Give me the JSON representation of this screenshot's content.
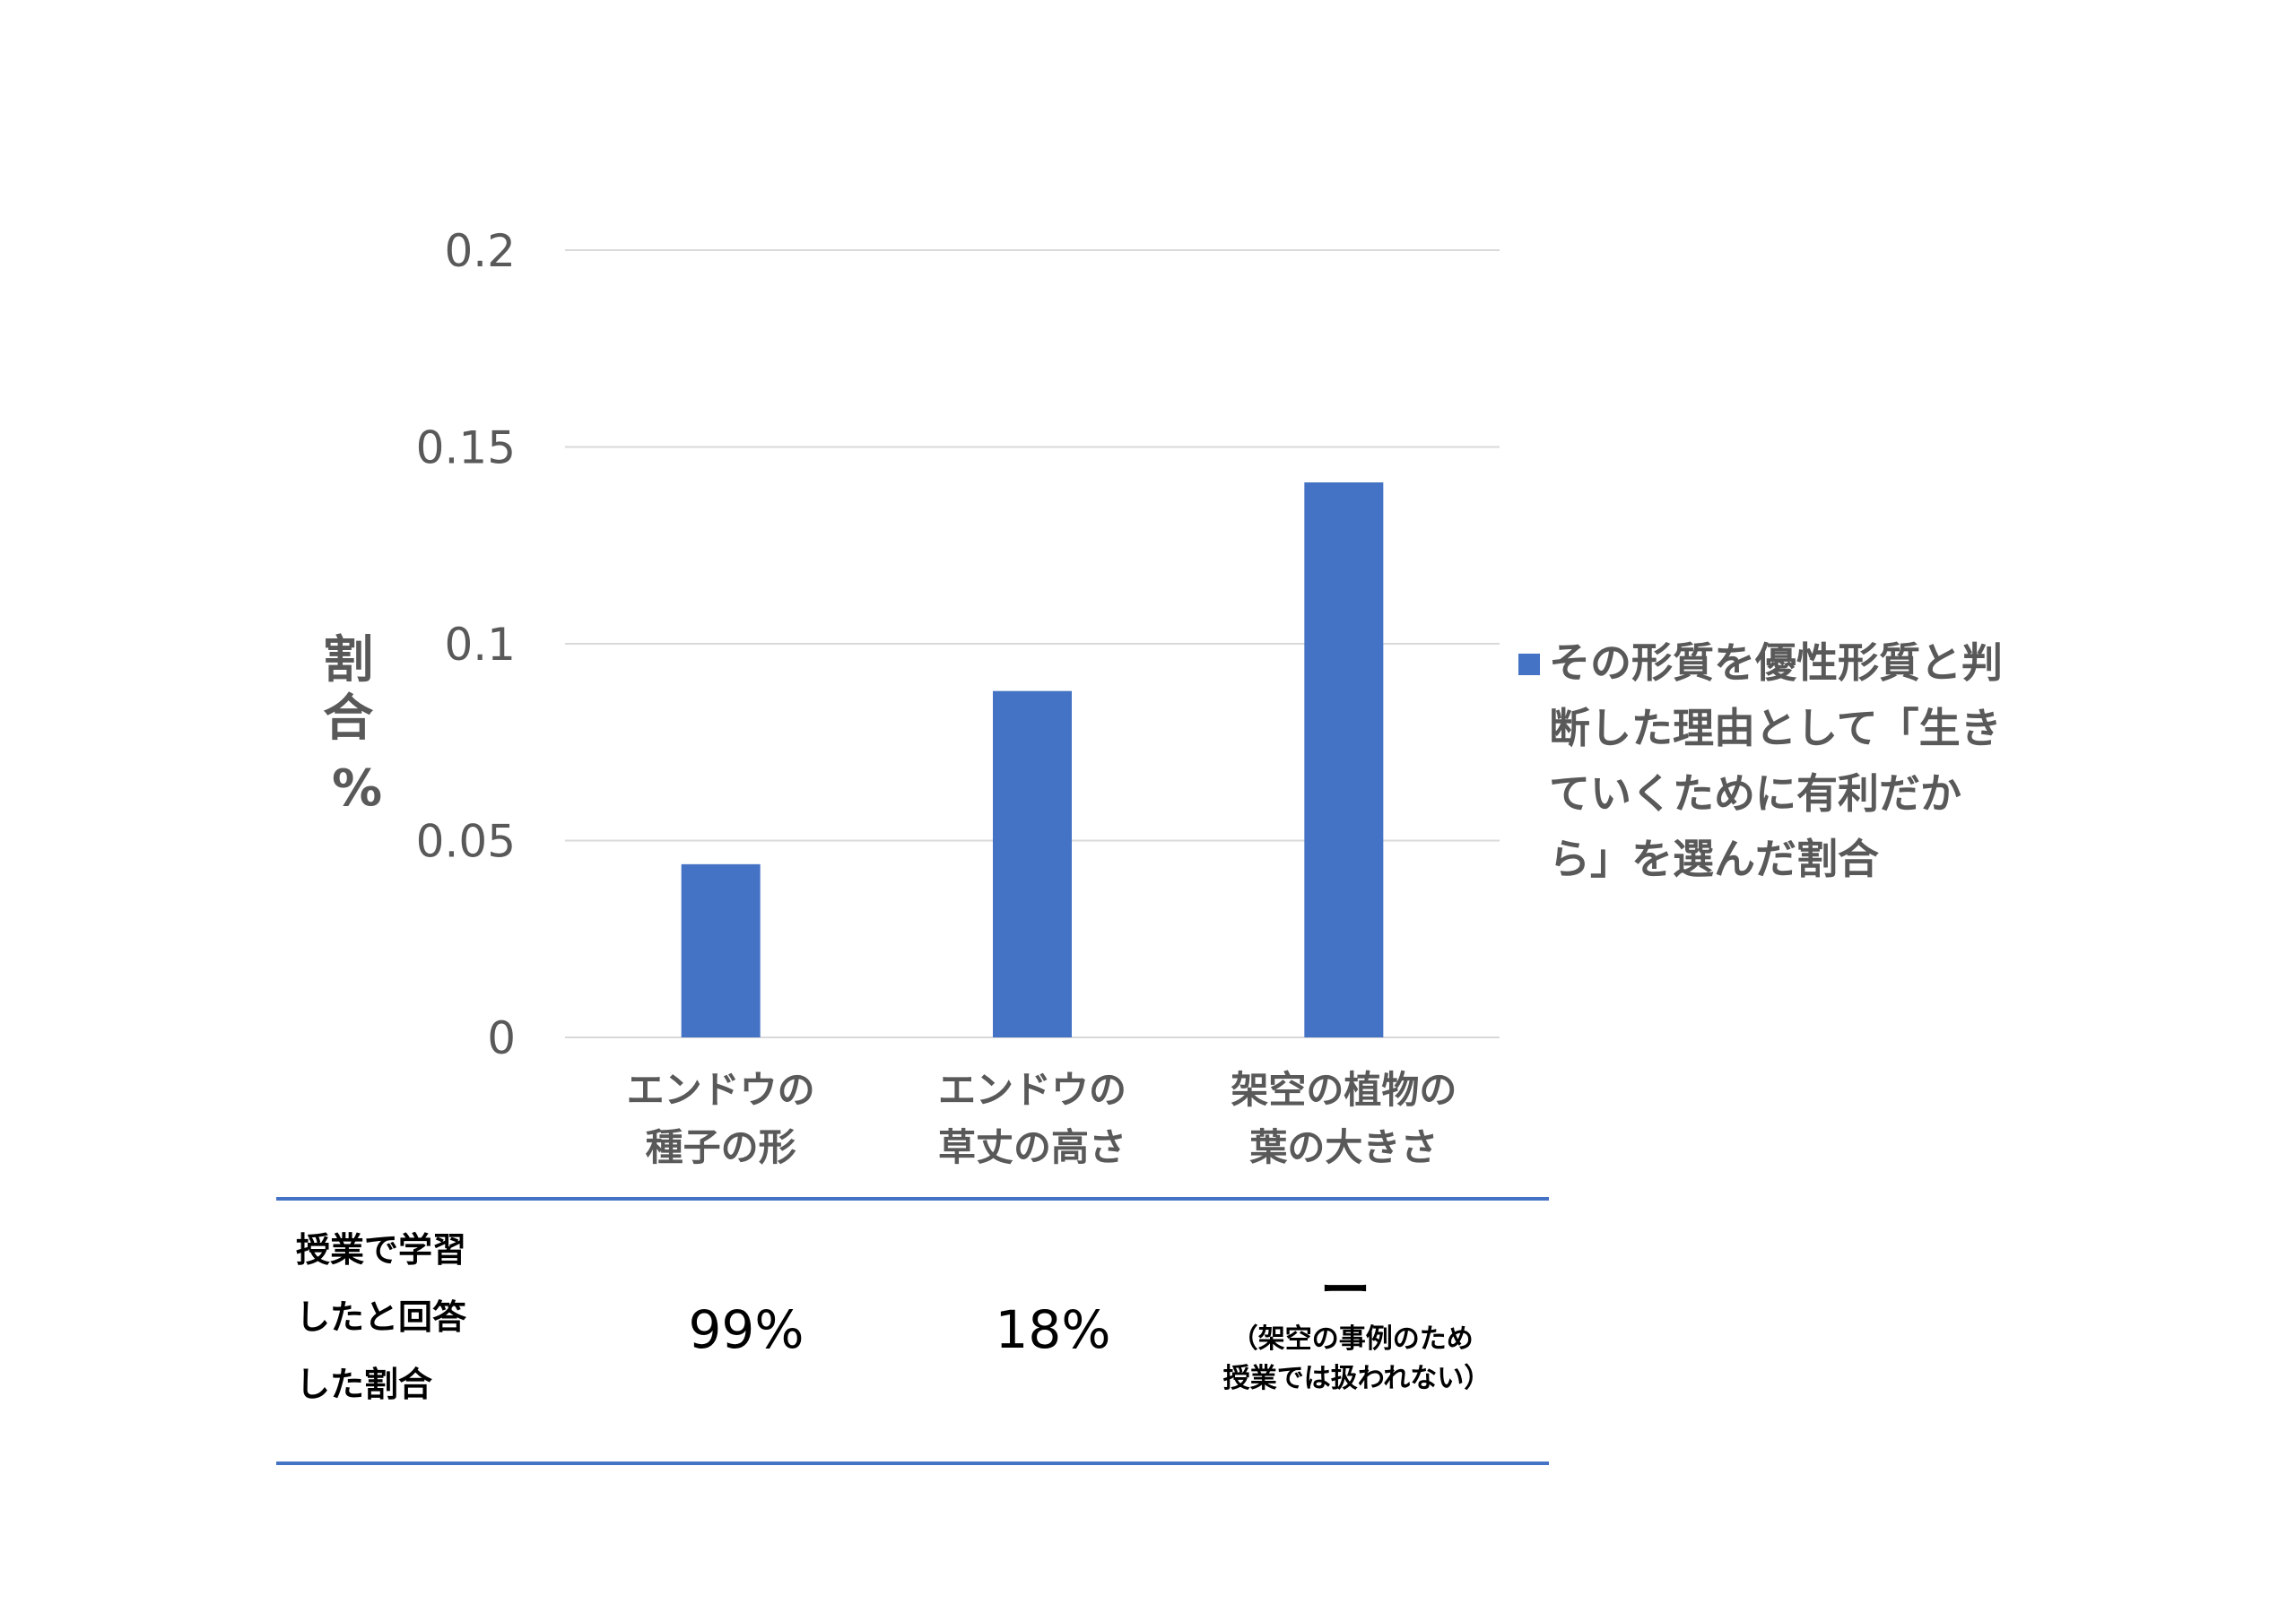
{
  "chart_data": {
    "type": "bar",
    "categories": [
      [
        "エンドウの",
        "種子の形"
      ],
      [
        "エンドウの",
        "草丈の高さ"
      ],
      [
        "架空の植物の",
        "葉の大きさ"
      ]
    ],
    "series": [
      {
        "name_lines": [
          "その形質を優性形質と判",
          "断した理由として「生き",
          "ていくために有利だか",
          "ら」を選んだ割合"
        ],
        "values": [
          0.044,
          0.088,
          0.141
        ],
        "color": "#4472C4"
      }
    ],
    "ylabel_lines": [
      "割",
      "合",
      "%"
    ],
    "ylim": [
      0,
      0.2
    ],
    "yticks": [
      "0",
      "0.05",
      "0.1",
      "0.15",
      "0.2"
    ],
    "grid": true,
    "legend_position": "right"
  },
  "table": {
    "row_label_lines": [
      "授業で学習",
      "したと回答",
      "した割合"
    ],
    "values": [
      "99%",
      "18%",
      "ー"
    ],
    "note_lines": [
      "（架空の事例のため",
      "授業では扱われない）"
    ],
    "line_color": "#4472C4"
  }
}
